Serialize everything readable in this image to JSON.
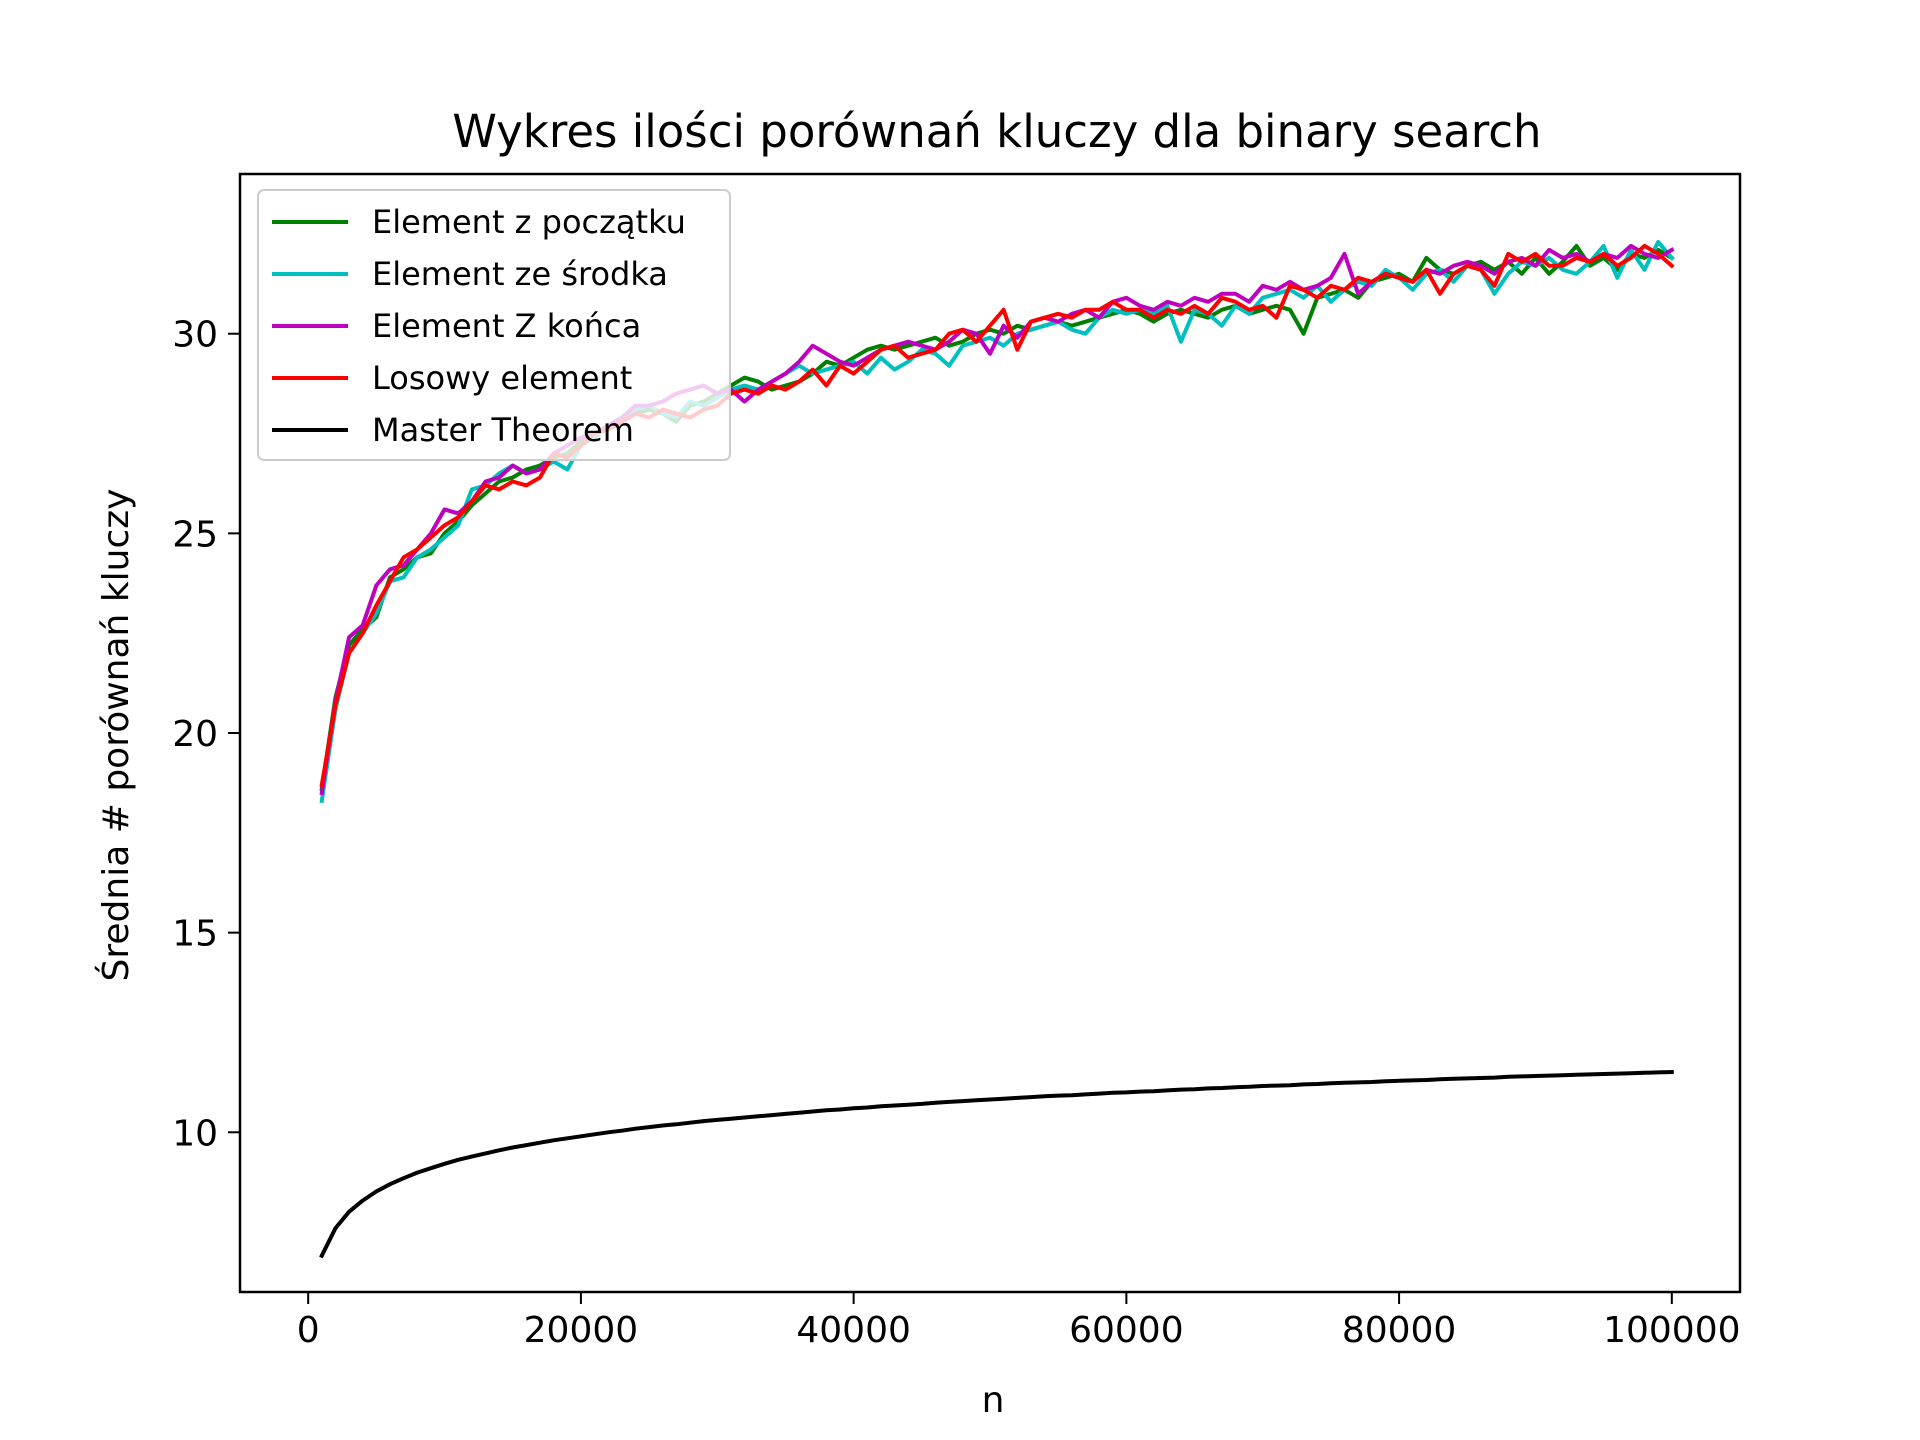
{
  "chart_data": {
    "type": "line",
    "title": "Wykres ilości porównań kluczy dla binary search",
    "xlabel": "n",
    "ylabel": "Średnia # porównań kluczy",
    "xlim": [
      -5000,
      105000
    ],
    "ylim": [
      6.0,
      34.0
    ],
    "xticks": [
      0,
      20000,
      40000,
      60000,
      80000,
      100000
    ],
    "yticks": [
      10,
      15,
      20,
      25,
      30
    ],
    "grid": false,
    "legend_position": "top-left",
    "x": [
      1000,
      2000,
      3000,
      4000,
      5000,
      6000,
      7000,
      8000,
      9000,
      10000,
      11000,
      12000,
      13000,
      14000,
      15000,
      16000,
      17000,
      18000,
      19000,
      20000,
      21000,
      22000,
      23000,
      24000,
      25000,
      26000,
      27000,
      28000,
      29000,
      30000,
      31000,
      32000,
      33000,
      34000,
      35000,
      36000,
      37000,
      38000,
      39000,
      40000,
      41000,
      42000,
      43000,
      44000,
      45000,
      46000,
      47000,
      48000,
      49000,
      50000,
      51000,
      52000,
      53000,
      54000,
      55000,
      56000,
      57000,
      58000,
      59000,
      60000,
      61000,
      62000,
      63000,
      64000,
      65000,
      66000,
      67000,
      68000,
      69000,
      70000,
      71000,
      72000,
      73000,
      74000,
      75000,
      76000,
      77000,
      78000,
      79000,
      80000,
      81000,
      82000,
      83000,
      84000,
      85000,
      86000,
      87000,
      88000,
      89000,
      90000,
      91000,
      92000,
      93000,
      94000,
      95000,
      96000,
      97000,
      98000,
      99000,
      100000
    ],
    "series": [
      {
        "name": "Element z początku",
        "color": "#008000",
        "values": [
          18.6,
          20.9,
          22.2,
          22.6,
          22.9,
          23.9,
          24.1,
          24.4,
          24.5,
          25.0,
          25.3,
          25.7,
          26.0,
          26.3,
          26.4,
          26.6,
          26.7,
          26.9,
          27.0,
          27.3,
          27.5,
          27.6,
          27.8,
          28.0,
          28.1,
          28.0,
          27.8,
          28.2,
          28.3,
          28.5,
          28.7,
          28.9,
          28.8,
          28.6,
          28.7,
          28.8,
          29.0,
          29.3,
          29.2,
          29.4,
          29.6,
          29.7,
          29.6,
          29.7,
          29.8,
          29.9,
          29.7,
          29.8,
          30.0,
          30.1,
          30.0,
          30.2,
          30.1,
          30.2,
          30.3,
          30.2,
          30.3,
          30.4,
          30.5,
          30.6,
          30.5,
          30.3,
          30.5,
          30.6,
          30.5,
          30.4,
          30.6,
          30.7,
          30.5,
          30.6,
          30.7,
          30.6,
          30.0,
          30.9,
          31.0,
          31.1,
          30.9,
          31.3,
          31.4,
          31.5,
          31.3,
          31.9,
          31.6,
          31.5,
          31.7,
          31.8,
          31.6,
          31.8,
          31.5,
          31.9,
          31.5,
          31.8,
          32.2,
          31.7,
          31.9,
          31.6,
          32.0,
          31.9,
          32.1,
          31.9
        ]
      },
      {
        "name": "Element ze środka",
        "color": "#00BFBF",
        "values": [
          18.3,
          20.6,
          22.0,
          22.5,
          23.0,
          23.8,
          23.9,
          24.4,
          24.6,
          24.9,
          25.2,
          26.1,
          26.2,
          26.5,
          26.7,
          26.5,
          26.6,
          26.8,
          26.6,
          27.2,
          27.4,
          27.7,
          27.9,
          28.1,
          28.2,
          28.0,
          27.9,
          28.3,
          28.2,
          28.4,
          28.6,
          28.7,
          28.6,
          28.8,
          29.0,
          29.2,
          29.0,
          29.1,
          29.2,
          29.3,
          29.0,
          29.4,
          29.1,
          29.3,
          29.6,
          29.5,
          29.2,
          29.7,
          29.8,
          29.9,
          29.7,
          30.0,
          30.1,
          30.2,
          30.3,
          30.1,
          30.0,
          30.4,
          30.6,
          30.5,
          30.6,
          30.5,
          30.7,
          29.8,
          30.6,
          30.5,
          30.2,
          30.7,
          30.5,
          30.9,
          31.0,
          31.1,
          30.9,
          31.2,
          30.8,
          31.1,
          31.3,
          31.2,
          31.6,
          31.4,
          31.1,
          31.5,
          31.6,
          31.3,
          31.7,
          31.6,
          31.0,
          31.5,
          31.8,
          31.7,
          31.9,
          31.6,
          31.5,
          31.8,
          32.2,
          31.4,
          32.1,
          31.6,
          32.3,
          31.9
        ]
      },
      {
        "name": "Element Z końca",
        "color": "#BF00BF",
        "values": [
          18.5,
          20.8,
          22.4,
          22.7,
          23.7,
          24.1,
          24.2,
          24.6,
          25.0,
          25.6,
          25.5,
          25.8,
          26.3,
          26.4,
          26.7,
          26.5,
          26.6,
          27.0,
          27.2,
          27.4,
          27.5,
          27.7,
          27.9,
          28.2,
          28.2,
          28.3,
          28.5,
          28.6,
          28.7,
          28.5,
          28.6,
          28.3,
          28.6,
          28.8,
          29.0,
          29.3,
          29.7,
          29.5,
          29.3,
          29.2,
          29.4,
          29.6,
          29.7,
          29.8,
          29.7,
          29.6,
          29.8,
          30.1,
          30.0,
          29.5,
          30.2,
          29.9,
          30.3,
          30.4,
          30.3,
          30.5,
          30.6,
          30.4,
          30.8,
          30.9,
          30.7,
          30.6,
          30.8,
          30.7,
          30.9,
          30.8,
          31.0,
          31.0,
          30.8,
          31.2,
          31.1,
          31.3,
          31.1,
          31.2,
          31.4,
          32.0,
          31.0,
          31.3,
          31.5,
          31.4,
          31.3,
          31.6,
          31.5,
          31.7,
          31.8,
          31.7,
          31.5,
          31.8,
          31.9,
          31.7,
          32.1,
          31.9,
          32.0,
          31.8,
          32.0,
          31.9,
          32.2,
          32.0,
          31.9,
          32.1
        ]
      },
      {
        "name": "Losowy element",
        "color": "#FF0000",
        "values": [
          18.7,
          20.7,
          22.0,
          22.5,
          23.2,
          23.8,
          24.4,
          24.6,
          24.9,
          25.2,
          25.4,
          25.8,
          26.2,
          26.1,
          26.3,
          26.2,
          26.4,
          27.0,
          26.9,
          27.2,
          27.5,
          27.6,
          27.8,
          28.0,
          27.9,
          28.1,
          28.0,
          27.9,
          28.1,
          28.2,
          28.5,
          28.6,
          28.5,
          28.7,
          28.6,
          28.8,
          29.1,
          28.7,
          29.2,
          29.0,
          29.3,
          29.6,
          29.7,
          29.4,
          29.5,
          29.6,
          30.0,
          30.1,
          29.8,
          30.2,
          30.6,
          29.6,
          30.3,
          30.4,
          30.5,
          30.4,
          30.6,
          30.6,
          30.8,
          30.6,
          30.6,
          30.4,
          30.6,
          30.5,
          30.7,
          30.5,
          30.9,
          30.8,
          30.6,
          30.7,
          30.4,
          31.2,
          31.1,
          30.9,
          31.2,
          31.1,
          31.4,
          31.3,
          31.5,
          31.4,
          31.3,
          31.6,
          31.0,
          31.5,
          31.7,
          31.6,
          31.2,
          32.0,
          31.8,
          32.0,
          31.7,
          31.7,
          31.9,
          31.8,
          32.0,
          31.7,
          31.9,
          32.2,
          32.0,
          31.7
        ]
      },
      {
        "name": "Master Theorem",
        "color": "#000000",
        "values": [
          6.91,
          7.6,
          8.01,
          8.29,
          8.52,
          8.7,
          8.85,
          8.99,
          9.1,
          9.21,
          9.31,
          9.39,
          9.47,
          9.55,
          9.62,
          9.68,
          9.74,
          9.8,
          9.85,
          9.9,
          9.95,
          10.0,
          10.04,
          10.09,
          10.13,
          10.17,
          10.2,
          10.24,
          10.28,
          10.31,
          10.34,
          10.37,
          10.4,
          10.43,
          10.46,
          10.49,
          10.52,
          10.55,
          10.57,
          10.6,
          10.62,
          10.65,
          10.67,
          10.69,
          10.71,
          10.74,
          10.76,
          10.78,
          10.8,
          10.82,
          10.84,
          10.86,
          10.88,
          10.9,
          10.92,
          10.93,
          10.95,
          10.97,
          10.99,
          11.0,
          11.02,
          11.03,
          11.05,
          11.07,
          11.08,
          11.1,
          11.11,
          11.13,
          11.14,
          11.16,
          11.17,
          11.18,
          11.2,
          11.21,
          11.23,
          11.24,
          11.25,
          11.26,
          11.28,
          11.29,
          11.3,
          11.31,
          11.33,
          11.34,
          11.35,
          11.36,
          11.37,
          11.39,
          11.4,
          11.41,
          11.42,
          11.43,
          11.44,
          11.45,
          11.46,
          11.47,
          11.48,
          11.49,
          11.5,
          11.51
        ]
      }
    ]
  }
}
